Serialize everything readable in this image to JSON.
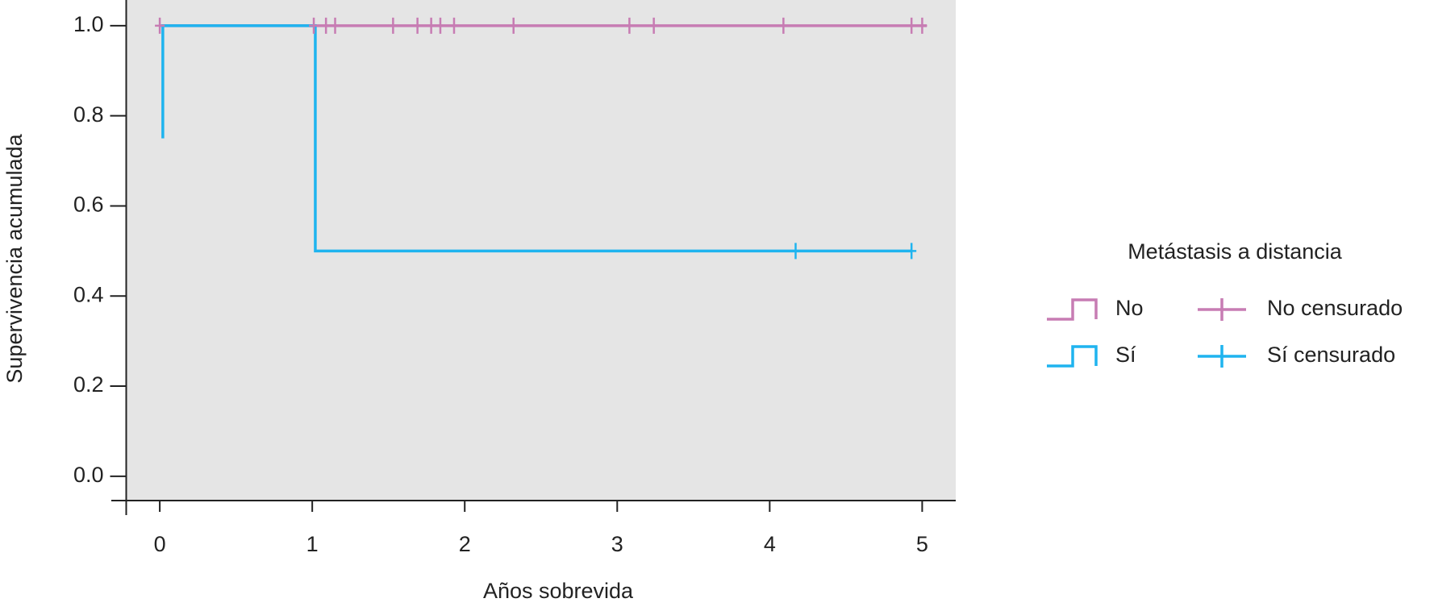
{
  "chart_data": {
    "type": "survival",
    "xlabel": "Años sobrevida",
    "ylabel": "Supervivencia acumulada",
    "legend_title": "Metástasis a distancia",
    "legend_position": "right",
    "background": "#e5e5e5",
    "xlim": [
      -0.22,
      5.22
    ],
    "ylim": [
      -0.054,
      1.057
    ],
    "xticks": [
      0,
      1,
      2,
      3,
      4,
      5
    ],
    "yticks": [
      {
        "value": 0,
        "label": "0.0"
      },
      {
        "value": 0.2,
        "label": "0.2"
      },
      {
        "value": 0.4,
        "label": "0.4"
      },
      {
        "value": 0.6,
        "label": "0.6"
      },
      {
        "value": 0.8,
        "label": "0.8"
      },
      {
        "value": 1,
        "label": "1.0"
      }
    ],
    "series": [
      {
        "name": "No",
        "kind": "step",
        "color": "#c77cb3",
        "x": [
          0,
          5.03
        ],
        "values": [
          1,
          1
        ]
      },
      {
        "name": "Sí",
        "kind": "step",
        "color": "#1fb4ef",
        "x": [
          0.02,
          0.02,
          1.02,
          1.02,
          4.93
        ],
        "values": [
          0.75,
          1,
          1,
          0.5,
          0.5
        ]
      },
      {
        "name": "No censurado",
        "kind": "censor",
        "color": "#c77cb3",
        "x": [
          0,
          1.01,
          1.09,
          1.15,
          1.53,
          1.69,
          1.78,
          1.84,
          1.93,
          2.32,
          3.08,
          3.24,
          4.09,
          4.93,
          5.0
        ],
        "values": [
          1,
          1,
          1,
          1,
          1,
          1,
          1,
          1,
          1,
          1,
          1,
          1,
          1,
          1,
          1
        ]
      },
      {
        "name": "Sí censurado",
        "kind": "censor",
        "color": "#1fb4ef",
        "x": [
          4.17,
          4.93
        ],
        "values": [
          0.5,
          0.5
        ]
      }
    ]
  }
}
